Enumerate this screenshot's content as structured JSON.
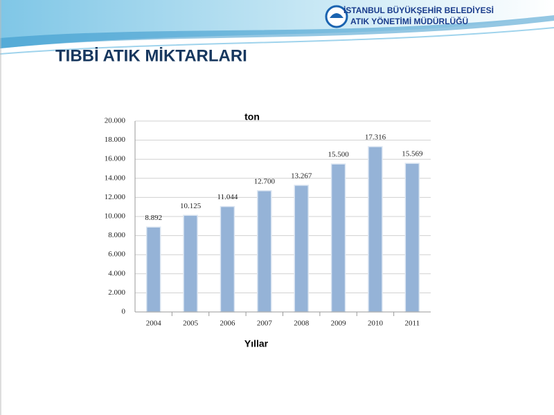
{
  "header": {
    "org": "İSTANBUL BÜYÜKŞEHİR BELEDİYESİ",
    "dept": "ATIK YÖNETİMİ MÜDÜRLÜĞÜ"
  },
  "chart_data": {
    "type": "bar",
    "title": "TIBBİ ATIK MİKTARLARI",
    "y_label": "ton",
    "x_label": "Yıllar",
    "categories": [
      "2004",
      "2005",
      "2006",
      "2007",
      "2008",
      "2009",
      "2010",
      "2011"
    ],
    "values": [
      8892,
      10125,
      11044,
      12700,
      13267,
      15500,
      17316,
      15569
    ],
    "value_labels": [
      "8.892",
      "10.125",
      "11.044",
      "12.700",
      "13.267",
      "15.500",
      "17.316",
      "15.569"
    ],
    "color": "#95b3d7",
    "ylim": [
      0,
      20000
    ],
    "yticks": [
      0,
      {
        "value": 2000,
        "label": "2.000"
      },
      {
        "value": 4000,
        "label": "4.000"
      },
      {
        "value": 6000,
        "label": "6.000"
      },
      {
        "value": 8000,
        "label": "8.000"
      },
      {
        "value": 10000,
        "label": "10.000"
      },
      {
        "value": 12000,
        "label": "12.000"
      },
      {
        "value": 14000,
        "label": "14.000"
      },
      {
        "value": 16000,
        "label": "16.000"
      },
      {
        "value": 18000,
        "label": "18.000"
      },
      {
        "value": 20000,
        "label": "20.000"
      }
    ],
    "grid": true
  }
}
